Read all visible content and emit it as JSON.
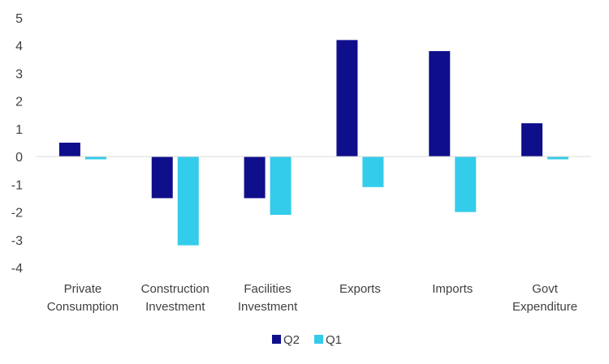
{
  "chart_data": {
    "type": "bar",
    "title": "",
    "xlabel": "",
    "ylabel": "",
    "ylim": [
      -4,
      5
    ],
    "yticks": [
      "5",
      "4",
      "3",
      "2",
      "1",
      "0",
      "-1",
      "-2",
      "-3",
      "-4"
    ],
    "categories": [
      [
        "Private",
        "Consumption"
      ],
      [
        "Construction",
        "Investment"
      ],
      [
        "Facilities",
        "Investment"
      ],
      [
        "Exports"
      ],
      [
        "Imports"
      ],
      [
        "Govt",
        "Expenditure"
      ]
    ],
    "series": [
      {
        "name": "Q2",
        "color": "#0f0f8c",
        "values": [
          0.5,
          -1.5,
          -1.5,
          4.2,
          3.8,
          1.2
        ]
      },
      {
        "name": "Q1",
        "color": "#33ccea",
        "values": [
          -0.1,
          -3.2,
          -2.1,
          -1.1,
          -2.0,
          -0.1
        ]
      }
    ],
    "legend": "bottom"
  }
}
